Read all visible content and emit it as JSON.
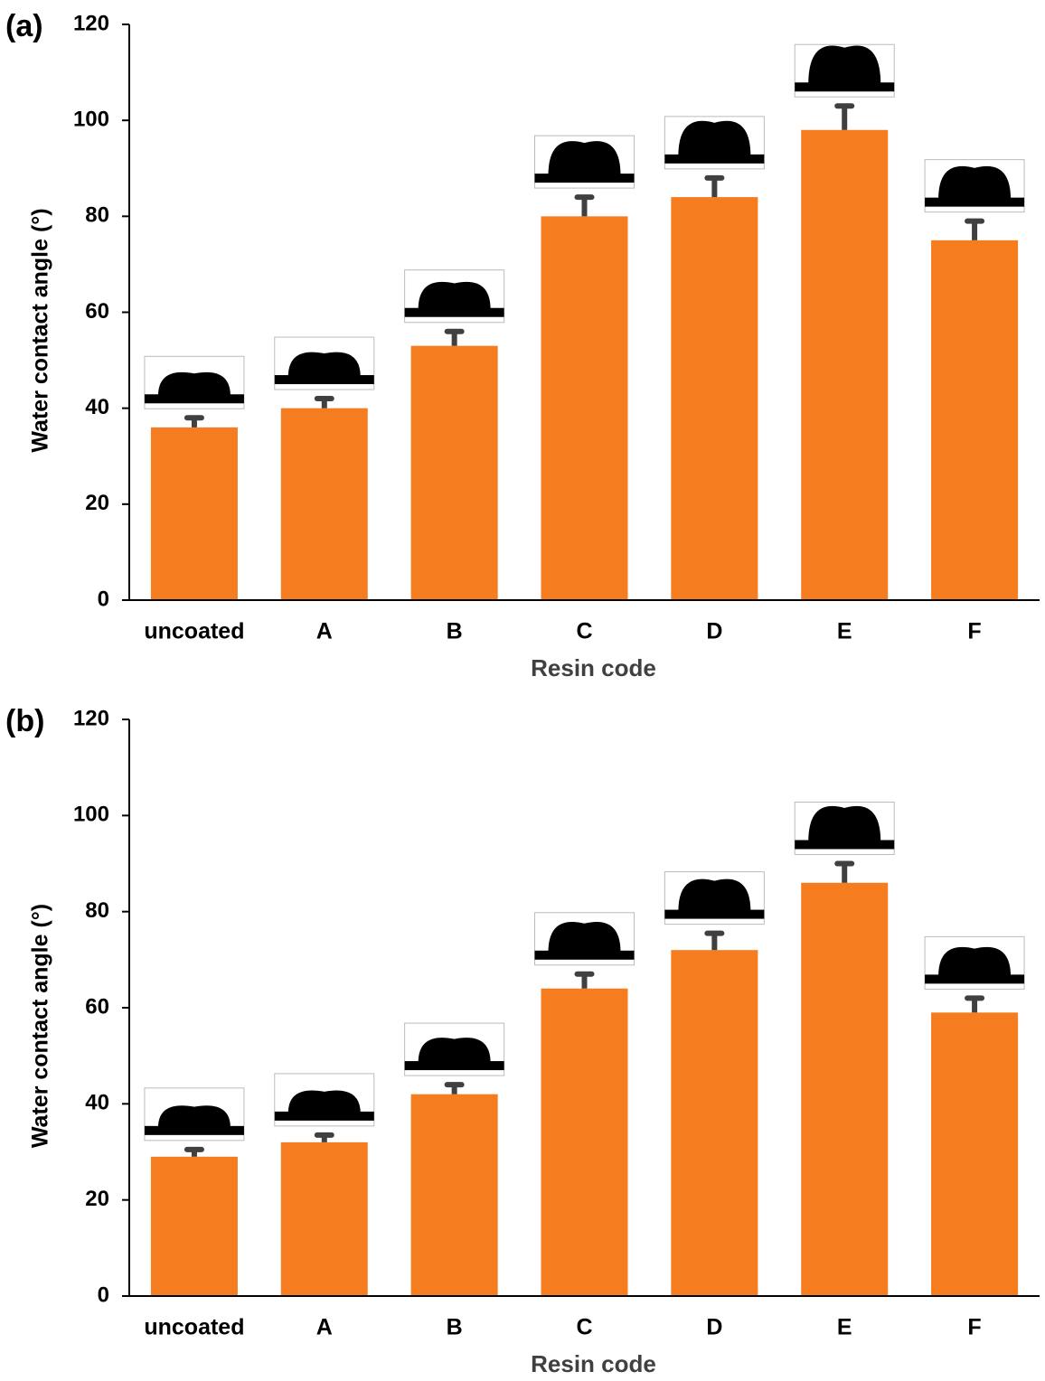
{
  "chart_data": [
    {
      "type": "bar",
      "label": "(a)",
      "x_label": "Resin code",
      "y_label": "Water contact angle (°)",
      "categories": [
        "uncoated",
        "A",
        "B",
        "C",
        "D",
        "E",
        "F"
      ],
      "values": [
        36,
        40,
        53,
        80,
        84,
        98,
        75
      ],
      "errors": [
        2,
        2,
        3,
        4,
        4,
        5,
        4
      ],
      "color": "#f57c1f",
      "ylim": [
        0,
        120
      ],
      "yticks": [
        0,
        20,
        40,
        60,
        80,
        100,
        120
      ]
    },
    {
      "type": "bar",
      "label": "(b)",
      "x_label": "Resin code",
      "y_label": "Water contact angle (°)",
      "categories": [
        "uncoated",
        "A",
        "B",
        "C",
        "D",
        "E",
        "F"
      ],
      "values": [
        29,
        32,
        42,
        64,
        72,
        86,
        59
      ],
      "errors": [
        1.5,
        1.5,
        2,
        3,
        3.5,
        4,
        3
      ],
      "color": "#f57c1f",
      "ylim": [
        0,
        120
      ],
      "yticks": [
        0,
        20,
        40,
        60,
        80,
        100,
        120
      ]
    }
  ]
}
